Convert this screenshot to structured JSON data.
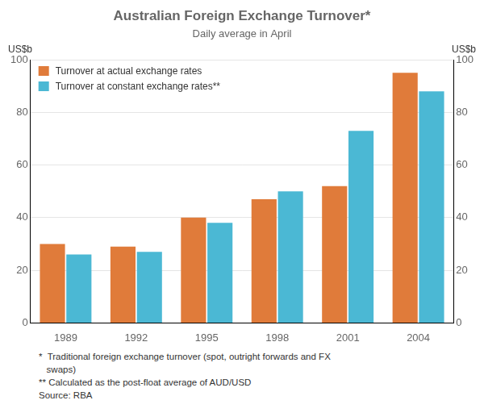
{
  "chart_data": {
    "type": "bar",
    "title": "Australian Foreign Exchange Turnover*",
    "subtitle": "Daily average in April",
    "ylabel": "US$b",
    "y2label": "US$b",
    "categories": [
      "1989",
      "1992",
      "1995",
      "1998",
      "2001",
      "2004"
    ],
    "series": [
      {
        "name": "Turnover at actual exchange rates",
        "color": "#E07B3A",
        "values": [
          30,
          29,
          40,
          47,
          52,
          95
        ]
      },
      {
        "name": "Turnover at constant exchange rates**",
        "color": "#4BB8D4",
        "values": [
          26,
          27,
          38,
          50,
          73,
          88
        ]
      }
    ],
    "ylim": [
      0,
      100
    ],
    "yticks": [
      0,
      20,
      40,
      60,
      80,
      100
    ],
    "y2lim": [
      0,
      100
    ],
    "y2ticks": [
      0,
      20,
      40,
      60,
      80,
      100
    ],
    "grid": true,
    "legend": "upper left",
    "footnotes": [
      "*  Traditional foreign exchange turnover (spot, outright forwards and FX",
      "   swaps)",
      "** Calculated as the post-float average of AUD/USD",
      "Source: RBA"
    ]
  }
}
